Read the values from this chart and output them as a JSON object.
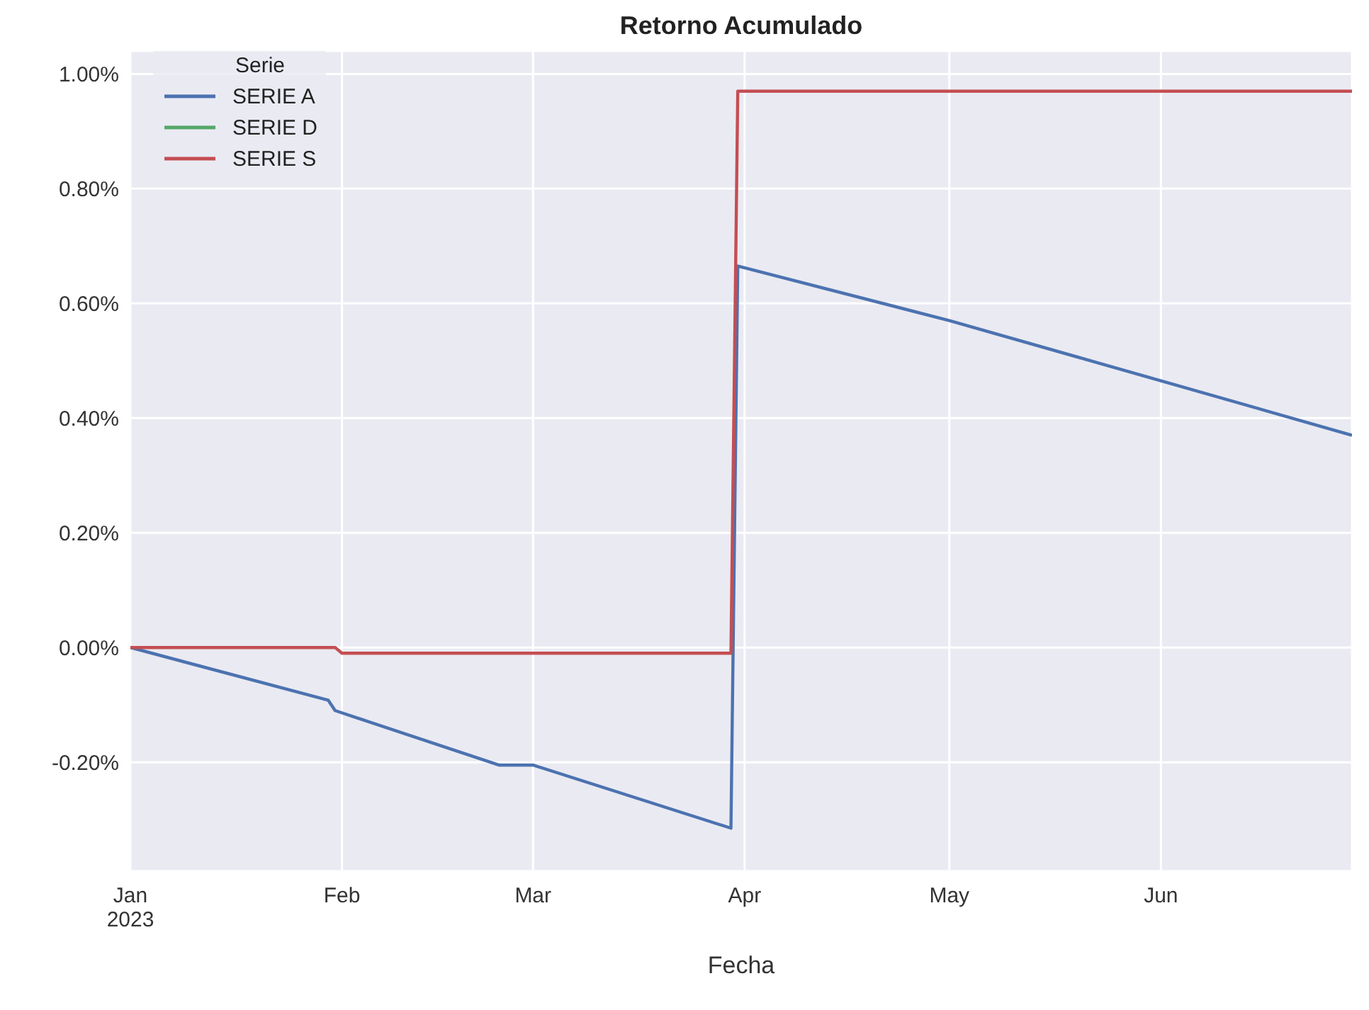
{
  "chart_data": {
    "type": "line",
    "title": "Retorno Acumulado",
    "xlabel": "Fecha",
    "legend_title": "Serie",
    "legend": "top left",
    "grid": true,
    "marker": "none",
    "line_style": "solid",
    "xlim": [
      "2023-01-01",
      "2023-06-29"
    ],
    "xticks": [
      {
        "value": "2023-01-01",
        "label": "Jan\n2023"
      },
      {
        "value": "2023-02-01",
        "label": "Feb"
      },
      {
        "value": "2023-03-01",
        "label": "Mar"
      },
      {
        "value": "2023-04-01",
        "label": "Apr"
      },
      {
        "value": "2023-05-01",
        "label": "May"
      },
      {
        "value": "2023-06-01",
        "label": "Jun"
      }
    ],
    "ylim": [
      -0.39,
      1.04
    ],
    "yticks": [
      {
        "value": -0.2,
        "label": "-0.20%"
      },
      {
        "value": 0,
        "label": "0.00%"
      },
      {
        "value": 0.2,
        "label": "0.20%"
      },
      {
        "value": 0.4,
        "label": "0.40%"
      },
      {
        "value": 0.6,
        "label": "0.60%"
      },
      {
        "value": 0.8,
        "label": "0.80%"
      },
      {
        "value": 1.0,
        "label": "1.00%"
      }
    ],
    "series": [
      {
        "name": "SERIE A",
        "color": "#4c72b0",
        "x": [
          "2023-01-01",
          "2023-01-30",
          "2023-01-31",
          "2023-02-24",
          "2023-03-01",
          "2023-03-30",
          "2023-03-31",
          "2023-05-01",
          "2023-06-01",
          "2023-06-29"
        ],
        "values": [
          0,
          -0.092,
          -0.11,
          -0.205,
          -0.205,
          -0.315,
          0.665,
          0.57,
          0.465,
          0.37
        ]
      },
      {
        "name": "SERIE D",
        "color": "#55a868"
      },
      {
        "name": "SERIE S",
        "color": "#c44e52",
        "x": [
          "2023-01-01",
          "2023-01-31",
          "2023-02-01",
          "2023-03-30",
          "2023-03-31",
          "2023-06-29"
        ],
        "values": [
          0,
          0,
          -0.01,
          -0.01,
          0.97,
          0.97
        ]
      }
    ]
  }
}
